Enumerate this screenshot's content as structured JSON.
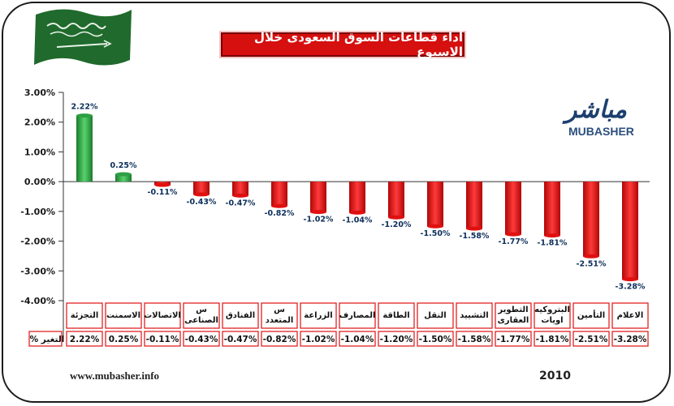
{
  "title": "أداء قطاعات السوق السعودى خلال الاسبوع",
  "logo": {
    "arabic": "مباشر",
    "english": "MUBASHER"
  },
  "footer": {
    "url": "www.mubasher.info",
    "year": "2010"
  },
  "row_label": "التغير %",
  "colors": {
    "positive": "#2ea043",
    "negative": "#e01010",
    "title_bg": "#d60f0f",
    "flag": "#1f6a2c"
  },
  "chart_data": {
    "type": "bar",
    "categories": [
      "التجزئة",
      "الاسمنت",
      "الاتصالات",
      "س الصناعي",
      "الفنادق",
      "س المتعدد",
      "الزراعة",
      "المصارف",
      "الطاقة",
      "النقل",
      "التشييد",
      "التطوير العقاري",
      "البتروكيماويات",
      "التأمين",
      "الاعلام"
    ],
    "category_lines": [
      [
        "التجزئة"
      ],
      [
        "الاسمنت"
      ],
      [
        "الاتصالات"
      ],
      [
        "س",
        "الصناعى"
      ],
      [
        "الفنادق"
      ],
      [
        "س",
        "المتعدد"
      ],
      [
        "الزراعة"
      ],
      [
        "المصارف"
      ],
      [
        "الطاقة"
      ],
      [
        "النقل"
      ],
      [
        "التشييد"
      ],
      [
        "التطوير",
        "العقارى"
      ],
      [
        "البتروكيه",
        "اويات"
      ],
      [
        "التأمين"
      ],
      [
        "الاعلام"
      ]
    ],
    "values": [
      2.22,
      0.25,
      -0.11,
      -0.43,
      -0.47,
      -0.82,
      -1.02,
      -1.04,
      -1.2,
      -1.5,
      -1.58,
      -1.77,
      -1.81,
      -2.51,
      -3.28
    ],
    "labels": [
      "2.22%",
      "0.25%",
      "-0.11%",
      "-0.43%",
      "-0.47%",
      "-0.82%",
      "-1.02%",
      "-1.04%",
      "-1.20%",
      "-1.50%",
      "-1.58%",
      "-1.77%",
      "-1.81%",
      "-2.51%",
      "-3.28%"
    ],
    "yticks": [
      3,
      2,
      1,
      0,
      -1,
      -2,
      -3,
      -4
    ],
    "ytick_labels": [
      "3.00%",
      "2.00%",
      "1.00%",
      "0.00%",
      "-1.00%",
      "-2.00%",
      "-3.00%",
      "-4.00%"
    ],
    "ylim": [
      -4,
      3
    ],
    "xlabel": "",
    "ylabel": "",
    "grid": false,
    "legend": "none"
  }
}
